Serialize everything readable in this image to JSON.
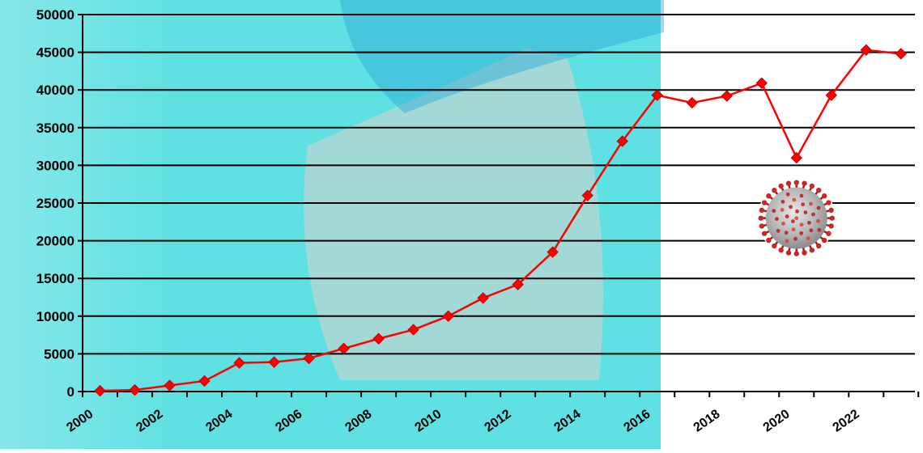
{
  "chart_data": {
    "type": "line",
    "title": "",
    "xlabel": "",
    "ylabel": "",
    "x": [
      2000,
      2001,
      2002,
      2003,
      2004,
      2005,
      2006,
      2007,
      2008,
      2009,
      2010,
      2011,
      2012,
      2013,
      2014,
      2015,
      2016,
      2017,
      2018,
      2019,
      2020,
      2021,
      2022,
      2023
    ],
    "series": [
      {
        "color": "#ff0000",
        "marker": "diamond",
        "values": [
          100,
          200,
          800,
          1400,
          3800,
          3900,
          4400,
          5700,
          7000,
          8200,
          10000,
          12400,
          14200,
          18500,
          26000,
          33200,
          39300,
          38300,
          39200,
          40900,
          31000,
          39300,
          45300,
          44800
        ]
      }
    ],
    "ylim": [
      0,
      50000
    ],
    "yticks": [
      0,
      5000,
      10000,
      15000,
      20000,
      25000,
      30000,
      35000,
      40000,
      45000,
      50000
    ],
    "xticks": [
      "2000",
      "2002",
      "2004",
      "2006",
      "2008",
      "2010",
      "2012",
      "2014",
      "2016",
      "2018",
      "2020",
      "2022"
    ],
    "grid": "horizontal",
    "legend": "none",
    "annotations": [
      {
        "kind": "coronavirus-icon",
        "x": 2020.5,
        "y": 23000
      }
    ],
    "background": {
      "left_panel_color": "#5fe0e2",
      "left_panel_extent_x": 2016.6,
      "right_panel_color": "#ffffff"
    }
  }
}
